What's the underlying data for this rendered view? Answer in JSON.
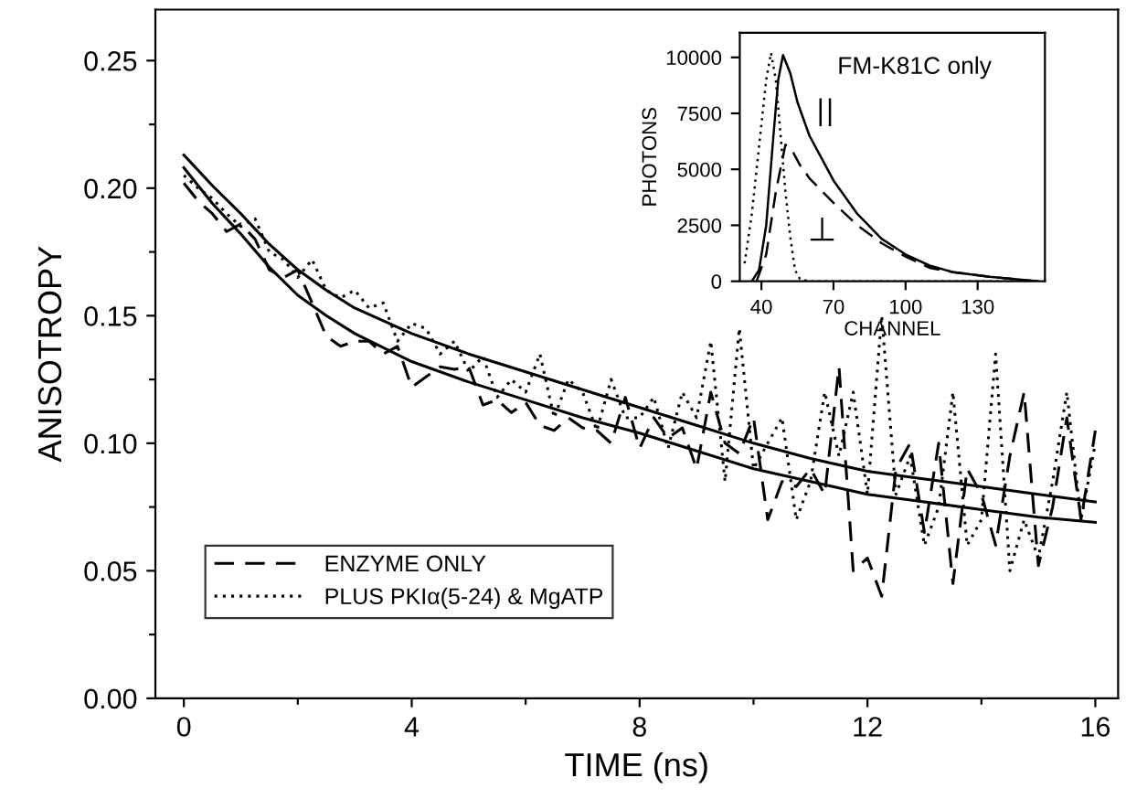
{
  "chart_data": [
    {
      "type": "line",
      "xlabel": "TIME (ns)",
      "ylabel": "ANISOTROPY",
      "xlim": [
        -0.5,
        16.4
      ],
      "ylim": [
        0,
        0.27
      ],
      "xticks": [
        0,
        {
          "value": 2,
          "label": null
        },
        4,
        {
          "value": 6,
          "label": null
        },
        8,
        {
          "value": 10,
          "label": null
        },
        12,
        {
          "value": 14,
          "label": null
        },
        16
      ],
      "yticks": [
        {
          "value": 0,
          "label": "0.00"
        },
        {
          "value": 0.025,
          "label": null
        },
        {
          "value": 0.05,
          "label": "0.05"
        },
        {
          "value": 0.075,
          "label": null
        },
        {
          "value": 0.1,
          "label": "0.10"
        },
        {
          "value": 0.125,
          "label": null
        },
        {
          "value": 0.15,
          "label": "0.15"
        },
        {
          "value": 0.175,
          "label": null
        },
        {
          "value": 0.2,
          "label": "0.20"
        },
        {
          "value": 0.225,
          "label": null
        },
        {
          "value": 0.25,
          "label": "0.25"
        }
      ],
      "grid": false,
      "legend": "bottom left",
      "marker": "none",
      "series": [
        {
          "name": "ENZYME ONLY",
          "color": "#000000",
          "line_style": "dashed",
          "x": [
            0,
            0.25,
            0.5,
            0.75,
            1,
            1.25,
            1.5,
            1.75,
            2,
            2.25,
            2.5,
            2.75,
            3,
            3.25,
            3.5,
            3.75,
            4,
            4.25,
            4.5,
            4.75,
            5,
            5.25,
            5.5,
            5.75,
            6,
            6.25,
            6.5,
            6.75,
            7,
            7.25,
            7.5,
            7.75,
            8,
            8.25,
            8.5,
            8.75,
            9,
            9.25,
            9.5,
            9.75,
            10,
            10.25,
            10.5,
            10.75,
            11,
            11.25,
            11.5,
            11.75,
            12,
            12.25,
            12.5,
            12.75,
            13,
            13.25,
            13.5,
            13.75,
            14,
            14.25,
            14.5,
            14.75,
            15,
            15.25,
            15.5,
            15.75,
            16
          ],
          "values": [
            0.202,
            0.195,
            0.19,
            0.183,
            0.186,
            0.18,
            0.168,
            0.165,
            0.168,
            0.155,
            0.142,
            0.138,
            0.14,
            0.14,
            0.135,
            0.138,
            0.122,
            0.126,
            0.13,
            0.129,
            0.13,
            0.115,
            0.117,
            0.112,
            0.116,
            0.107,
            0.105,
            0.11,
            0.106,
            0.105,
            0.1,
            0.118,
            0.098,
            0.11,
            0.102,
            0.106,
            0.09,
            0.12,
            0.1,
            0.096,
            0.11,
            0.07,
            0.085,
            0.083,
            0.09,
            0.08,
            0.13,
            0.05,
            0.055,
            0.04,
            0.09,
            0.1,
            0.065,
            0.1,
            0.045,
            0.09,
            0.08,
            0.06,
            0.095,
            0.12,
            0.052,
            0.075,
            0.11,
            0.07,
            0.105
          ]
        },
        {
          "name": "PLUS PKIα(5-24) & MgATP",
          "color": "#000000",
          "line_style": "dotted",
          "x": [
            0,
            0.25,
            0.5,
            0.75,
            1,
            1.25,
            1.5,
            1.75,
            2,
            2.25,
            2.5,
            2.75,
            3,
            3.25,
            3.5,
            3.75,
            4,
            4.25,
            4.5,
            4.75,
            5,
            5.25,
            5.5,
            5.75,
            6,
            6.25,
            6.5,
            6.75,
            7,
            7.25,
            7.5,
            7.75,
            8,
            8.25,
            8.5,
            8.75,
            9,
            9.25,
            9.5,
            9.75,
            10,
            10.25,
            10.5,
            10.75,
            11,
            11.25,
            11.5,
            11.75,
            12,
            12.25,
            12.5,
            12.75,
            13,
            13.25,
            13.5,
            13.75,
            14,
            14.25,
            14.5,
            14.75,
            15,
            15.25,
            15.5,
            15.75,
            16
          ],
          "values": [
            0.205,
            0.2,
            0.196,
            0.19,
            0.185,
            0.188,
            0.175,
            0.172,
            0.165,
            0.172,
            0.16,
            0.157,
            0.16,
            0.153,
            0.155,
            0.14,
            0.147,
            0.145,
            0.135,
            0.14,
            0.128,
            0.134,
            0.118,
            0.125,
            0.12,
            0.135,
            0.11,
            0.125,
            0.12,
            0.105,
            0.125,
            0.11,
            0.11,
            0.118,
            0.098,
            0.12,
            0.11,
            0.14,
            0.085,
            0.145,
            0.09,
            0.1,
            0.11,
            0.07,
            0.085,
            0.12,
            0.095,
            0.12,
            0.08,
            0.15,
            0.08,
            0.095,
            0.06,
            0.075,
            0.12,
            0.06,
            0.07,
            0.135,
            0.05,
            0.07,
            0.055,
            0.085,
            0.12,
            0.07,
            0.1
          ]
        },
        {
          "color": "#000000",
          "line_style": "solid",
          "x": [
            0,
            0.5,
            1,
            1.5,
            2,
            2.5,
            3,
            4,
            5,
            6,
            7,
            8,
            9,
            10,
            11,
            12,
            13,
            14,
            15,
            16
          ],
          "values": [
            0.213,
            0.201,
            0.19,
            0.178,
            0.168,
            0.16,
            0.153,
            0.143,
            0.135,
            0.128,
            0.121,
            0.114,
            0.107,
            0.1,
            0.094,
            0.089,
            0.086,
            0.083,
            0.08,
            0.077
          ]
        },
        {
          "color": "#000000",
          "line_style": "solid",
          "x": [
            0,
            0.5,
            1,
            1.5,
            2,
            2.5,
            3,
            4,
            5,
            6,
            7,
            8,
            9,
            10,
            11,
            12,
            13,
            14,
            15,
            16
          ],
          "values": [
            0.208,
            0.194,
            0.182,
            0.169,
            0.158,
            0.15,
            0.143,
            0.132,
            0.124,
            0.117,
            0.11,
            0.104,
            0.097,
            0.09,
            0.085,
            0.08,
            0.077,
            0.074,
            0.071,
            0.069
          ]
        }
      ]
    },
    {
      "type": "line",
      "xlabel": "CHANNEL",
      "ylabel": "PHOTONS",
      "xlim": [
        31,
        158
      ],
      "ylim": [
        0,
        11100
      ],
      "xticks": [
        40,
        70,
        100,
        130
      ],
      "yticks": [
        0,
        2500,
        5000,
        7500,
        10000
      ],
      "grid": false,
      "marker": "none",
      "annotations": [
        "FM-K81C only",
        "||",
        "⊥"
      ],
      "series": [
        {
          "color": "#000000",
          "line_style": "solid",
          "x": [
            36,
            39,
            42,
            45,
            47,
            49,
            52,
            55,
            60,
            65,
            70,
            80,
            90,
            100,
            110,
            120,
            135,
            155
          ],
          "values": [
            0,
            500,
            2500,
            6500,
            9000,
            10100,
            9300,
            8000,
            6500,
            5500,
            4500,
            3000,
            1900,
            1200,
            700,
            400,
            200,
            0
          ]
        },
        {
          "color": "#000000",
          "line_style": "dashed",
          "x": [
            38,
            42,
            46,
            50,
            53,
            56,
            60,
            70,
            80,
            90,
            100,
            110,
            120,
            135,
            155
          ],
          "values": [
            0,
            1200,
            4000,
            6100,
            5800,
            5200,
            4600,
            3500,
            2500,
            1700,
            1100,
            600,
            400,
            200,
            0
          ]
        },
        {
          "color": "#000000",
          "line_style": "dotted",
          "x": [
            33,
            36,
            39,
            42,
            44,
            46,
            48,
            50,
            52,
            54,
            56,
            60,
            155
          ],
          "values": [
            800,
            3000,
            6000,
            9000,
            10200,
            9000,
            6500,
            4000,
            2000,
            500,
            100,
            0,
            0
          ]
        }
      ]
    }
  ]
}
